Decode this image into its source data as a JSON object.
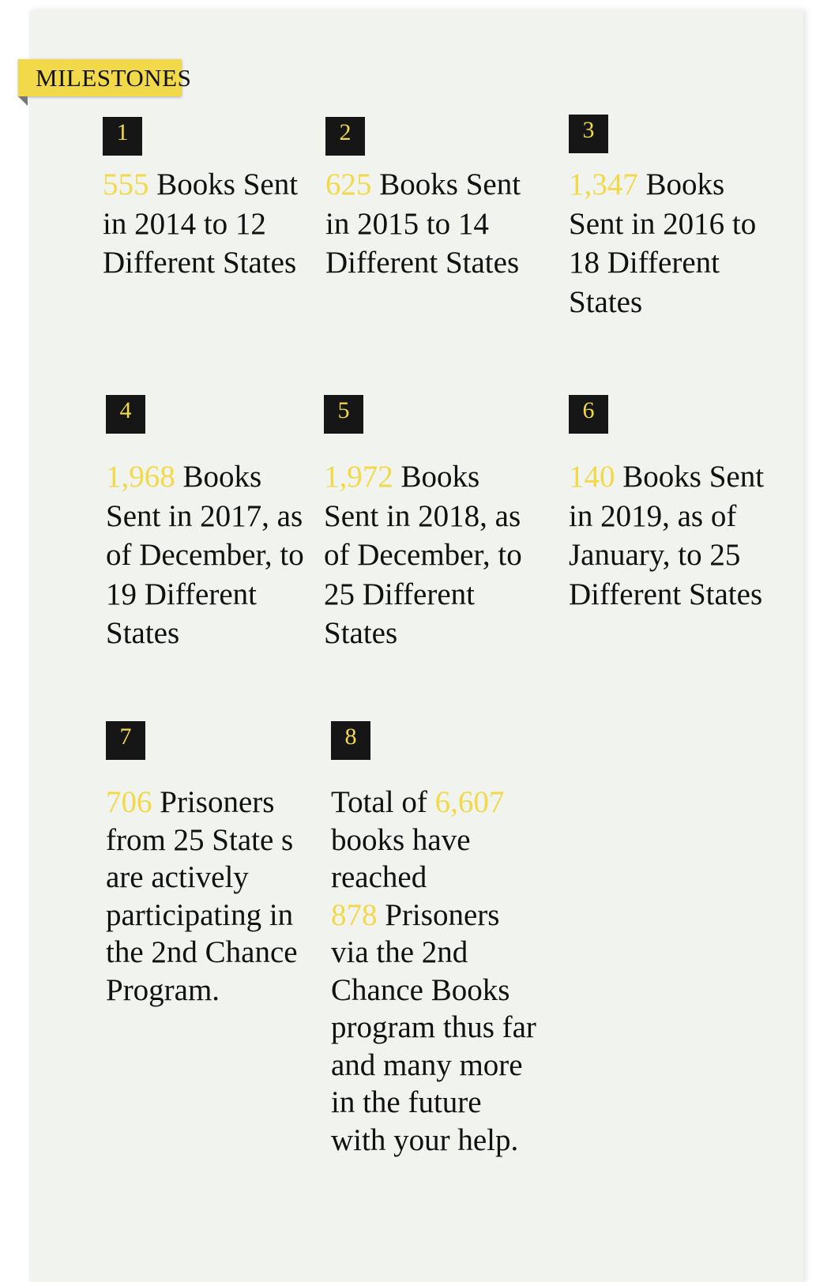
{
  "section_label": "MILESTONES",
  "colors": {
    "accent": "#f1d94a",
    "background": "#f1f3ee",
    "number_box": "#161616"
  },
  "milestones": [
    {
      "number": "1",
      "highlight": "555",
      "text": " Books Sent in 2014 to 12 Different States"
    },
    {
      "number": "2",
      "highlight": "625",
      "text": " Books Sent in 2015 to 14 Different States"
    },
    {
      "number": "3",
      "highlight": "1,347",
      "text": " Books Sent in 2016 to 18 Different States"
    },
    {
      "number": "4",
      "highlight": "1,968",
      "text": " Books Sent in 2017, as of December, to 19 Different States"
    },
    {
      "number": "5",
      "highlight": "1,972",
      "text": " Books Sent in 2018, as of December, to 25 Different States"
    },
    {
      "number": "6",
      "highlight": "140",
      "text": " Books Sent in 2019, as of January, to 25 Different States"
    },
    {
      "number": "7",
      "highlight": "706",
      "text": " Prisoners from 25 State s are actively participating in the 2nd Chance Program."
    },
    {
      "number": "8",
      "prefix": "Total of ",
      "highlight": "6,607",
      "text": " books have reached",
      "highlight2": "878",
      "text2": " Prisoners via the 2nd Chance Books program thus far and many more in the future with your help."
    }
  ]
}
